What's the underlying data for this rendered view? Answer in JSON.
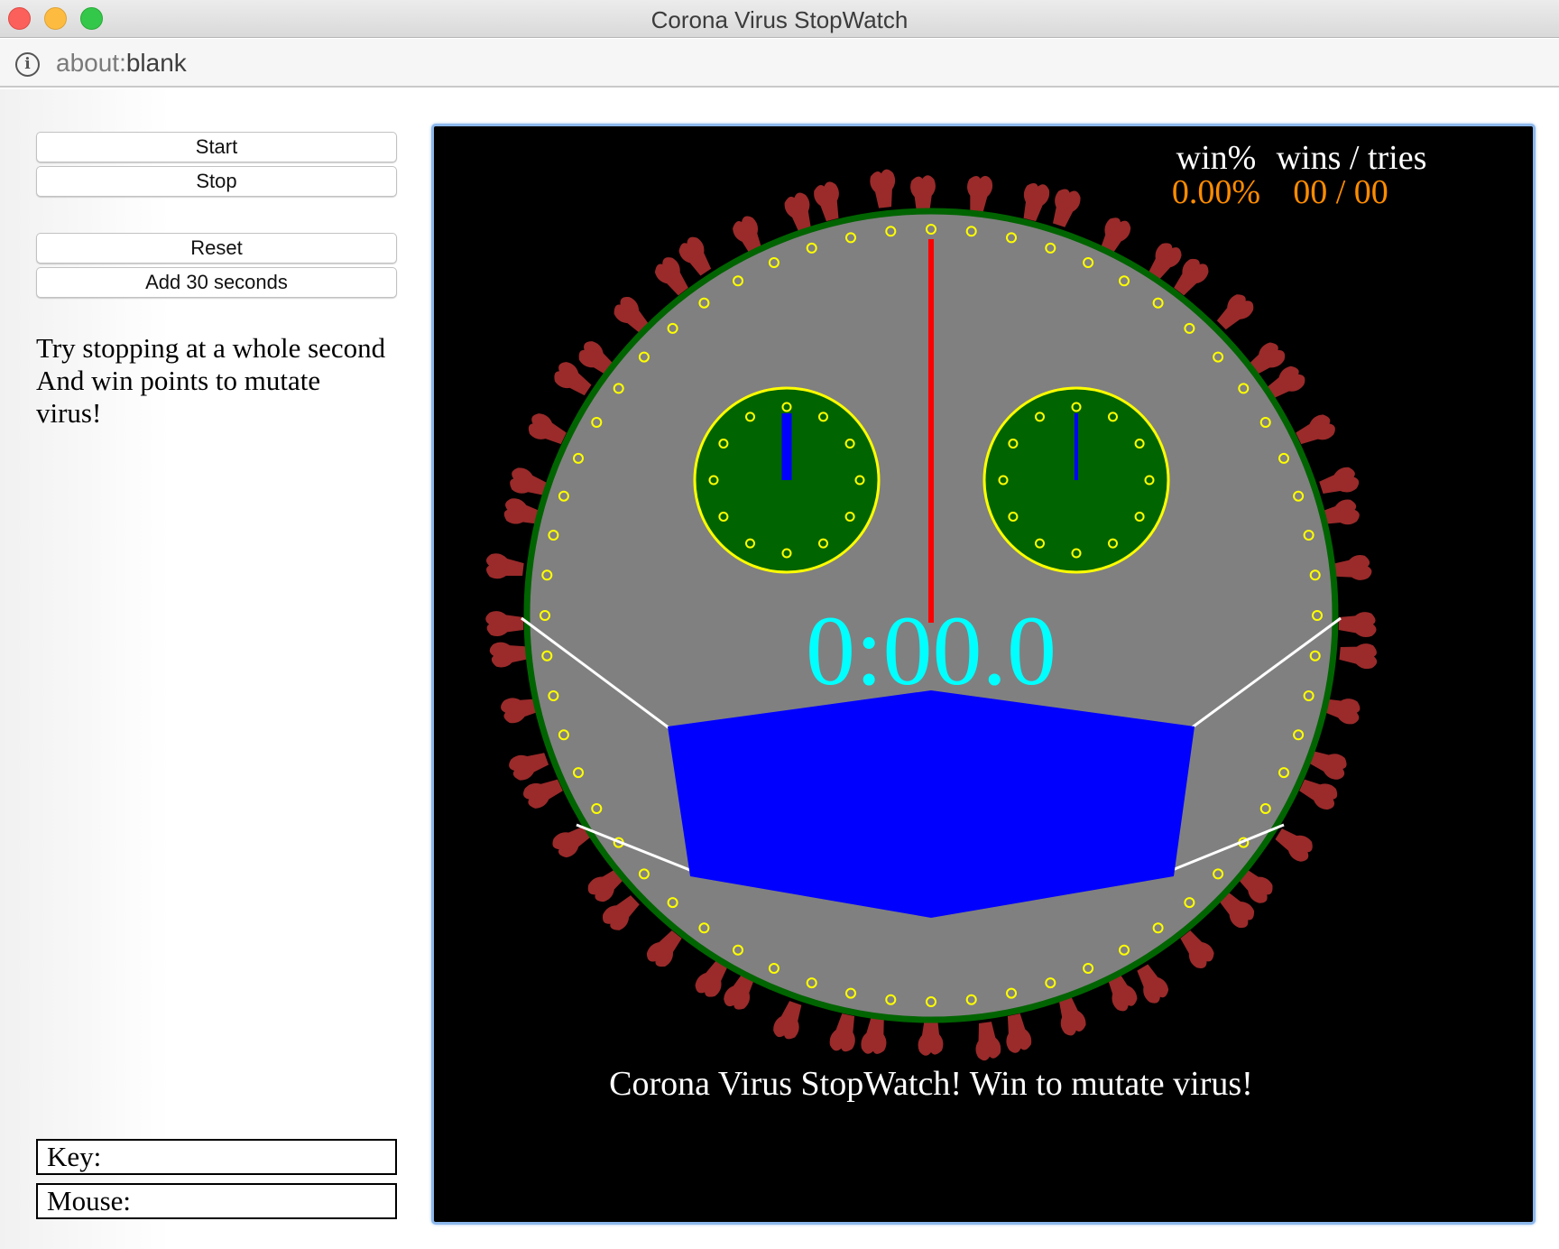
{
  "window": {
    "title": "Corona Virus StopWatch",
    "url_prefix": "about:",
    "url_rest": "blank"
  },
  "controls": {
    "start_label": "Start",
    "stop_label": "Stop",
    "reset_label": "Reset",
    "add30_label": "Add 30 seconds"
  },
  "instructions": {
    "line1": "Try stopping at a whole second",
    "line2": "And win points to mutate",
    "line3": "virus!"
  },
  "readouts": {
    "key_label": "Key:",
    "key_value": "",
    "mouse_label": "Mouse:",
    "mouse_value": ""
  },
  "game": {
    "time_display": "0:00.0",
    "win_pct_label": "win%",
    "win_pct_value": "0.00%",
    "wins_tries_label": "wins / tries",
    "wins_tries_value": "00 / 00",
    "footer": "Corona Virus StopWatch! Win to mutate virus!",
    "colors": {
      "background": "#000000",
      "face": "#808080",
      "rim": "#006400",
      "spikes": "#9b2a2a",
      "tick_dots": "#ffff00",
      "second_hand": "#ff0000",
      "eye_fill": "#006400",
      "eye_rim": "#ffff00",
      "eye_hand": "#0000ff",
      "mask": "#0000ff",
      "mask_strap": "#ffffff",
      "time_text": "#00ffff",
      "score_value": "#ff8c00",
      "score_label": "#ffffff"
    }
  }
}
